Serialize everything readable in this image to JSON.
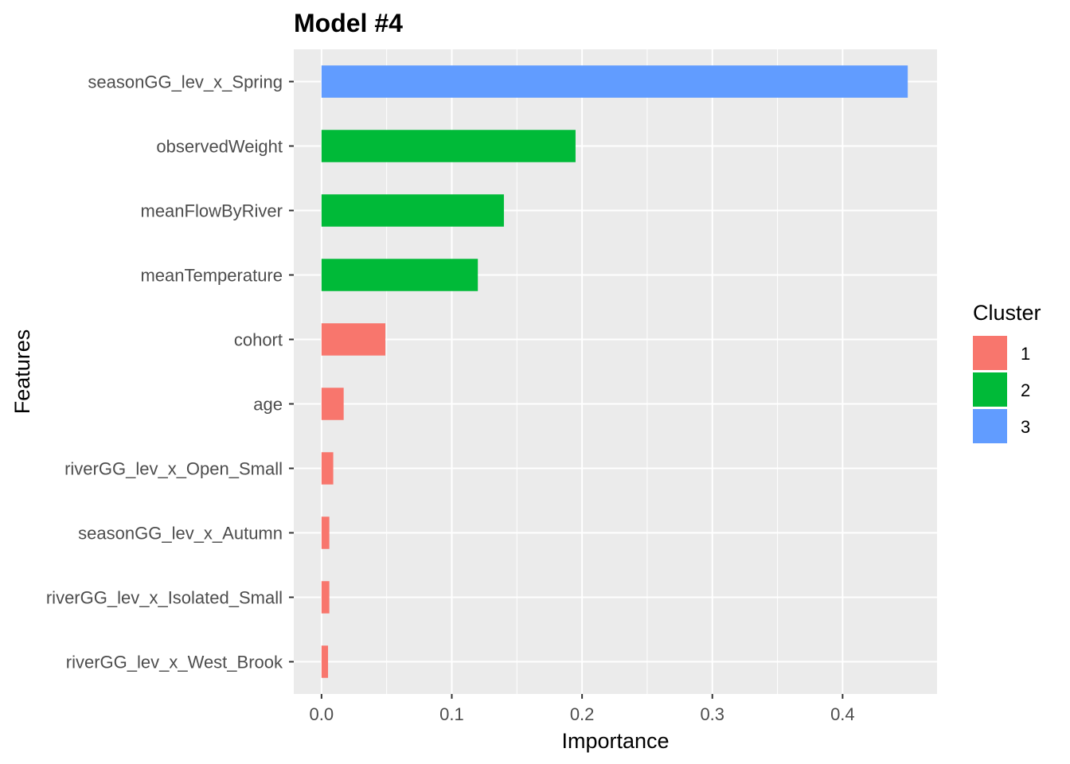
{
  "chart_data": {
    "type": "bar",
    "orientation": "horizontal",
    "title": "Model #4",
    "xlabel": "Importance",
    "ylabel": "Features",
    "xlim": [
      -0.0213,
      0.4725
    ],
    "x_ticks": [
      0.0,
      0.1,
      0.2,
      0.3,
      0.4
    ],
    "x_tick_labels": [
      "0.0",
      "0.1",
      "0.2",
      "0.3",
      "0.4"
    ],
    "grid": true,
    "categories": [
      "seasonGG_lev_x_Spring",
      "observedWeight",
      "meanFlowByRiver",
      "meanTemperature",
      "cohort",
      "age",
      "riverGG_lev_x_Open_Small",
      "seasonGG_lev_x_Autumn",
      "riverGG_lev_x_Isolated_Small",
      "riverGG_lev_x_West_Brook"
    ],
    "values": [
      0.45,
      0.195,
      0.14,
      0.12,
      0.049,
      0.017,
      0.009,
      0.006,
      0.006,
      0.005
    ],
    "cluster": [
      "3",
      "2",
      "2",
      "2",
      "1",
      "1",
      "1",
      "1",
      "1",
      "1"
    ],
    "legend": {
      "title": "Cluster",
      "position": "right",
      "entries": [
        {
          "label": "1",
          "color": "#F8766D"
        },
        {
          "label": "2",
          "color": "#00BA38"
        },
        {
          "label": "3",
          "color": "#619CFF"
        }
      ]
    },
    "panel_background": "#EBEBEB",
    "grid_color": "#FFFFFF"
  }
}
